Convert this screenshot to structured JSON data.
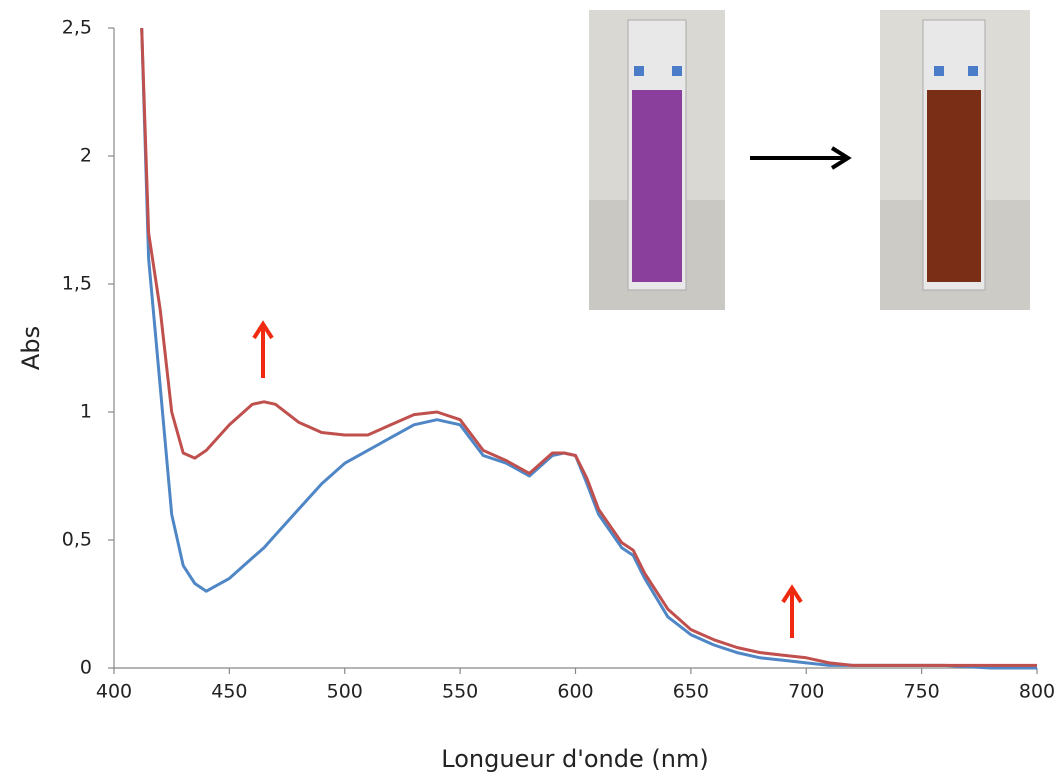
{
  "chart_data": {
    "type": "line",
    "x_label": "Longueur d'onde (nm)",
    "y_label": "Abs",
    "x": [
      412,
      415,
      420,
      425,
      430,
      435,
      440,
      450,
      460,
      465,
      470,
      480,
      490,
      500,
      510,
      520,
      530,
      540,
      550,
      560,
      570,
      580,
      590,
      595,
      600,
      605,
      610,
      620,
      625,
      630,
      640,
      650,
      660,
      670,
      680,
      690,
      700,
      710,
      720,
      740,
      760,
      780,
      800
    ],
    "series": [
      {
        "color": "#4f86c6",
        "values": [
          2.5,
          1.6,
          1.1,
          0.6,
          0.4,
          0.33,
          0.3,
          0.35,
          0.43,
          0.47,
          0.52,
          0.62,
          0.72,
          0.8,
          0.85,
          0.9,
          0.95,
          0.97,
          0.95,
          0.83,
          0.8,
          0.75,
          0.83,
          0.84,
          0.83,
          0.72,
          0.6,
          0.47,
          0.44,
          0.35,
          0.2,
          0.13,
          0.09,
          0.06,
          0.04,
          0.03,
          0.02,
          0.01,
          0.01,
          0.01,
          0.01,
          0,
          0
        ]
      },
      {
        "color": "#c0504d",
        "values": [
          2.5,
          1.7,
          1.4,
          1.0,
          0.84,
          0.82,
          0.85,
          0.95,
          1.03,
          1.04,
          1.03,
          0.96,
          0.92,
          0.91,
          0.91,
          0.95,
          0.99,
          1.0,
          0.97,
          0.85,
          0.81,
          0.76,
          0.84,
          0.84,
          0.83,
          0.74,
          0.62,
          0.49,
          0.46,
          0.37,
          0.23,
          0.15,
          0.11,
          0.08,
          0.06,
          0.05,
          0.04,
          0.02,
          0.01,
          0.01,
          0.01,
          0.01,
          0.01
        ]
      }
    ],
    "xlim": [
      400,
      800
    ],
    "xticks": [
      400,
      450,
      500,
      550,
      600,
      650,
      700,
      750,
      800
    ],
    "ylim": [
      0,
      2.5
    ],
    "yticks": [
      0,
      {
        "value": 0.5,
        "label": "0,5"
      },
      1,
      {
        "value": 1.5,
        "label": "1,5"
      },
      2,
      {
        "value": 2.5,
        "label": "2,5"
      }
    ]
  }
}
